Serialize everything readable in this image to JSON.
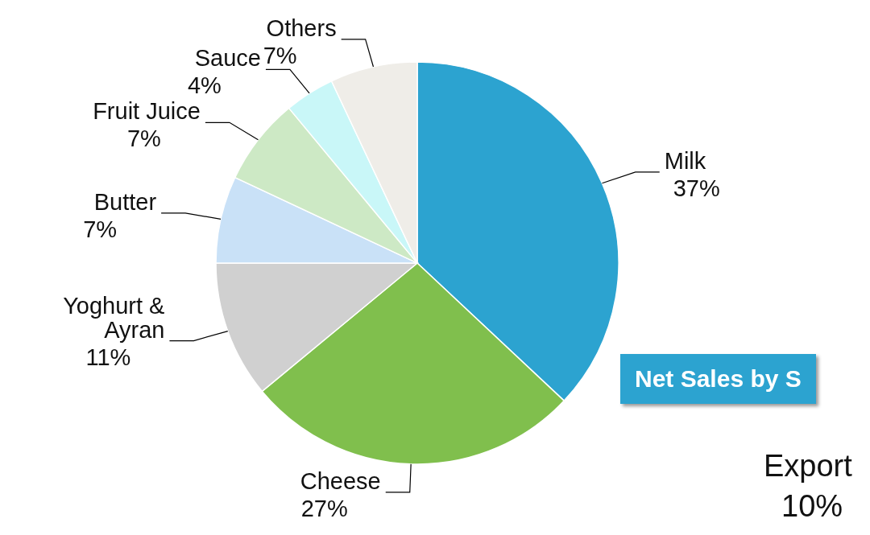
{
  "chart_data": {
    "type": "pie",
    "categories": [
      "Milk",
      "Cheese",
      "Yoghurt & Ayran",
      "Butter",
      "Fruit Juice",
      "Sauce",
      "Others"
    ],
    "values": [
      37,
      27,
      11,
      7,
      7,
      4,
      7
    ],
    "value_labels": [
      "37%",
      "27%",
      "11%",
      "7%",
      "7%",
      "4%",
      "7%"
    ],
    "colors": [
      "#2ca3d0",
      "#80bf4d",
      "#d0d0d0",
      "#c9e1f7",
      "#cde9c5",
      "#c9f7f8",
      "#efede8"
    ],
    "annotations": [
      "Net Sales by S",
      "Export",
      "10%"
    ]
  }
}
